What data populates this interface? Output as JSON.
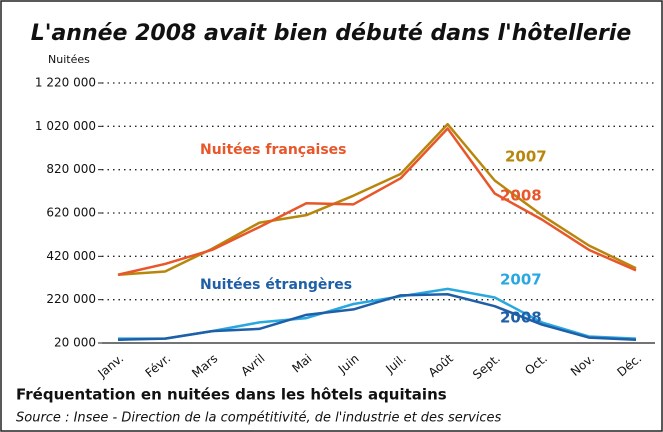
{
  "chart_data": {
    "type": "line",
    "title": "L'année 2008 avait bien débuté dans l'hôtellerie",
    "y_label": "Nuitées",
    "caption": "Fréquentation en nuitées dans les hôtels aquitains",
    "source": "Source : Insee - Direction de la compétitivité, de l'industrie et des services",
    "categories": [
      "Janv.",
      "Févr.",
      "Mars",
      "Avril",
      "Mai",
      "Juin",
      "Juil.",
      "Août",
      "Sept.",
      "Oct.",
      "Nov.",
      "Déc."
    ],
    "ylim": [
      20000,
      1220000
    ],
    "yticks": [
      {
        "value": 20000,
        "label": "20 000"
      },
      {
        "value": 220000,
        "label": "220 000"
      },
      {
        "value": 420000,
        "label": "420 000"
      },
      {
        "value": 620000,
        "label": "620 000"
      },
      {
        "value": 820000,
        "label": "820 000"
      },
      {
        "value": 1020000,
        "label": "1 020 000"
      },
      {
        "value": 1220000,
        "label": "1 220 000"
      }
    ],
    "grid": true,
    "annotations": [
      "Nuitées françaises",
      "Nuitées étrangères"
    ],
    "series": [
      {
        "name": "2007",
        "color": "#b8860b",
        "values": [
          335000,
          350000,
          455000,
          575000,
          610000,
          700000,
          800000,
          1030000,
          770000,
          610000,
          470000,
          365000
        ]
      },
      {
        "name": "2008",
        "color": "#e8562a",
        "values": [
          335000,
          385000,
          450000,
          555000,
          665000,
          660000,
          780000,
          1010000,
          710000,
          590000,
          450000,
          355000
        ]
      },
      {
        "name": "2007",
        "color": "#29a8e0",
        "values": [
          40000,
          40000,
          75000,
          115000,
          135000,
          200000,
          235000,
          270000,
          230000,
          115000,
          50000,
          40000
        ]
      },
      {
        "name": "2008",
        "color": "#1f5fa8",
        "values": [
          35000,
          40000,
          75000,
          85000,
          150000,
          175000,
          240000,
          245000,
          190000,
          105000,
          45000,
          35000
        ]
      }
    ]
  }
}
